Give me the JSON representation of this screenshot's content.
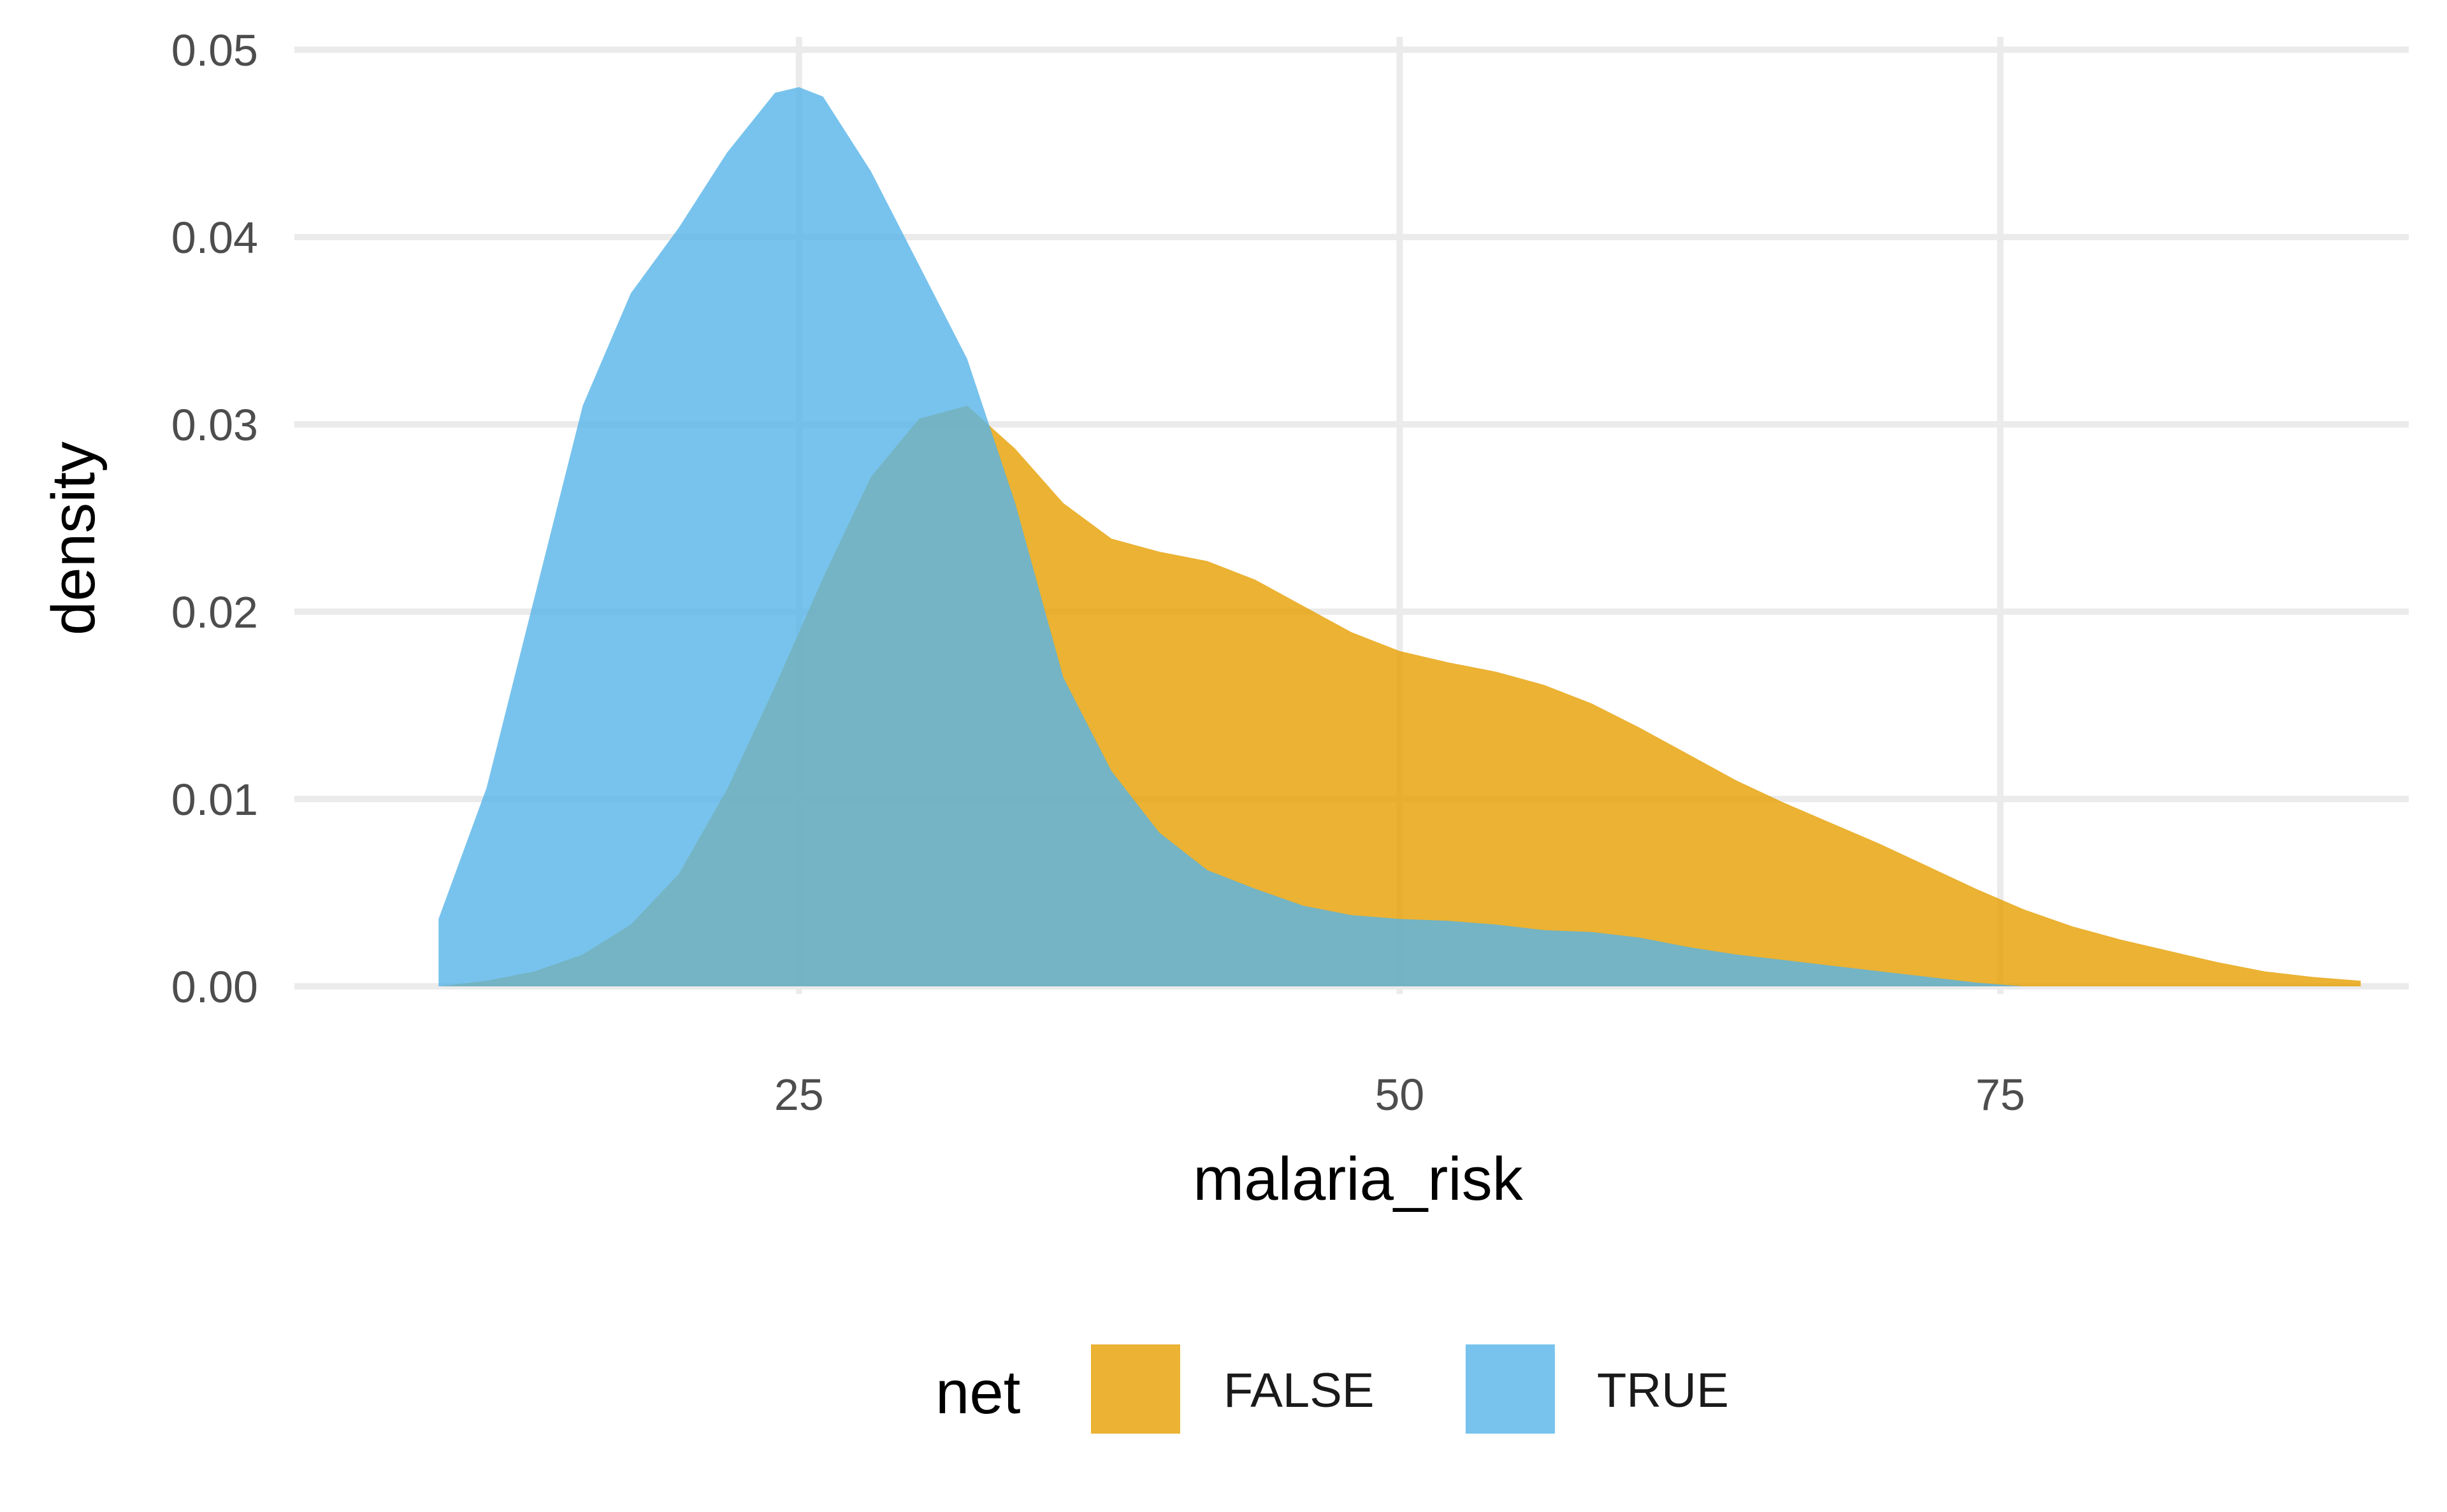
{
  "chart_data": {
    "type": "area",
    "subtype": "density",
    "title": "",
    "xlabel": "malaria_risk",
    "ylabel": "density",
    "xlim": [
      4,
      92
    ],
    "ylim": [
      0,
      0.05
    ],
    "x_ticks": [
      25,
      50,
      75
    ],
    "x_tick_labels": [
      "25",
      "50",
      "75"
    ],
    "y_ticks": [
      0,
      0.01,
      0.02,
      0.03,
      0.04,
      0.05
    ],
    "y_tick_labels": [
      "0.00",
      "0.01",
      "0.02",
      "0.03",
      "0.04",
      "0.05"
    ],
    "grid": true,
    "legend": {
      "title": "net",
      "position": "bottom",
      "entries": [
        "FALSE",
        "TRUE"
      ]
    },
    "series": [
      {
        "name": "FALSE",
        "color": "#E69F00",
        "x": [
          10,
          12,
          14,
          16,
          18,
          20,
          22,
          24,
          26,
          28,
          30,
          32,
          34,
          36,
          38,
          40,
          42,
          44,
          46,
          48,
          50,
          52,
          54,
          56,
          58,
          60,
          62,
          64,
          66,
          68,
          70,
          72,
          74,
          76,
          78,
          80,
          82,
          84,
          86,
          88,
          90
        ],
        "y": [
          0.0,
          0.0003,
          0.0008,
          0.0017,
          0.0033,
          0.006,
          0.0105,
          0.016,
          0.0218,
          0.0272,
          0.0303,
          0.031,
          0.0287,
          0.0258,
          0.0239,
          0.0232,
          0.0227,
          0.0217,
          0.0203,
          0.0189,
          0.0179,
          0.0173,
          0.0168,
          0.0161,
          0.0151,
          0.0138,
          0.0124,
          0.011,
          0.0098,
          0.0087,
          0.0076,
          0.0064,
          0.0052,
          0.0041,
          0.0032,
          0.0025,
          0.0019,
          0.0013,
          0.0008,
          0.0005,
          0.0003
        ]
      },
      {
        "name": "TRUE",
        "color": "#56B4E9",
        "x": [
          10,
          12,
          14,
          16,
          18,
          20,
          22,
          24,
          25,
          26,
          28,
          30,
          32,
          34,
          36,
          38,
          40,
          42,
          44,
          46,
          48,
          50,
          52,
          54,
          56,
          58,
          60,
          62,
          64,
          66,
          68,
          70,
          72,
          74,
          76
        ],
        "y": [
          0.0036,
          0.0106,
          0.0208,
          0.031,
          0.037,
          0.0405,
          0.0445,
          0.0477,
          0.048,
          0.0475,
          0.0435,
          0.0385,
          0.0335,
          0.0258,
          0.0165,
          0.0115,
          0.0082,
          0.0062,
          0.0052,
          0.0043,
          0.0038,
          0.0036,
          0.0035,
          0.0033,
          0.003,
          0.0029,
          0.0026,
          0.0021,
          0.0017,
          0.0014,
          0.0011,
          0.0008,
          0.0005,
          0.0002,
          0.0
        ]
      }
    ]
  }
}
